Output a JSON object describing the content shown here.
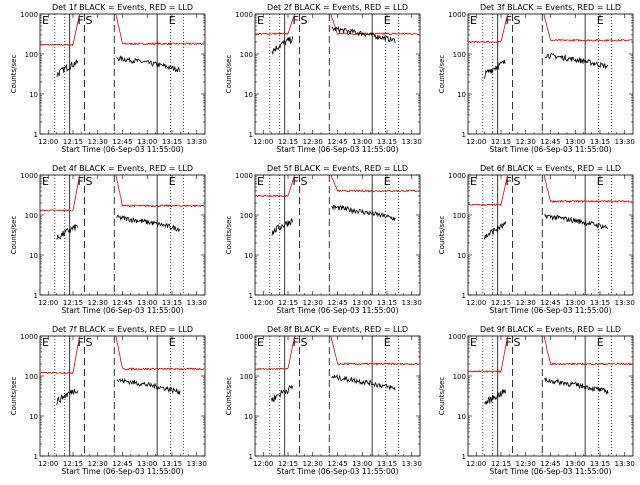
{
  "chart_data": {
    "type": "line",
    "yscale": "log",
    "ylim": [
      1,
      1000
    ],
    "xlim": [
      "11:55",
      "13:35"
    ],
    "x_tick_labels": [
      "12:00",
      "12:15",
      "12:30",
      "12:45",
      "13:00",
      "13:15",
      "13:30"
    ],
    "y_tick_labels": [
      "1",
      "10",
      "100",
      "1000"
    ],
    "ylabel": "Counts/sec",
    "xlabel": "Start Time (06-Sep-03 11:55:00)",
    "grid": false,
    "dotted_markers": [
      "12:04",
      "12:10",
      "13:14",
      "13:22"
    ],
    "dashed_markers": [
      "12:22",
      "12:40"
    ],
    "solid_markers": [
      "12:13",
      "13:06"
    ],
    "event_labels": {
      "E": "E",
      "F": "F",
      "S": "S"
    },
    "colors": {
      "events": "#000000",
      "lld": "#dd0000"
    },
    "series_names": [
      "BLACK = Events",
      "RED = LLD"
    ],
    "panels": [
      {
        "title": "Det 1f BLACK = Events, RED = LLD",
        "red": {
          "pre": 170,
          "post": 180,
          "peak": 1000
        },
        "black": {
          "pre": 60,
          "post": 50
        }
      },
      {
        "title": "Det 2f BLACK = Events, RED = LLD",
        "red": {
          "pre": 320,
          "post": 320,
          "peak": 1000
        },
        "black": {
          "pre": 230,
          "post": 270
        }
      },
      {
        "title": "Det 3f BLACK = Events, RED = LLD",
        "red": {
          "pre": 200,
          "post": 220,
          "peak": 1000
        },
        "black": {
          "pre": 60,
          "post": 60
        }
      },
      {
        "title": "Det 4f BLACK = Events, RED = LLD",
        "red": {
          "pre": 130,
          "post": 170,
          "peak": 1000
        },
        "black": {
          "pre": 50,
          "post": 55
        }
      },
      {
        "title": "Det 5f BLACK = Events, RED = LLD",
        "red": {
          "pre": 300,
          "post": 400,
          "peak": 1000
        },
        "black": {
          "pre": 70,
          "post": 100
        }
      },
      {
        "title": "Det 6f BLACK = Events, RED = LLD",
        "red": {
          "pre": 180,
          "post": 220,
          "peak": 1000
        },
        "black": {
          "pre": 55,
          "post": 60
        }
      },
      {
        "title": "Det 7f BLACK = Events, RED = LLD",
        "red": {
          "pre": 120,
          "post": 150,
          "peak": 1000
        },
        "black": {
          "pre": 45,
          "post": 50
        }
      },
      {
        "title": "Det 8f BLACK = Events, RED = LLD",
        "red": {
          "pre": 150,
          "post": 200,
          "peak": 1000
        },
        "black": {
          "pre": 50,
          "post": 60
        }
      },
      {
        "title": "Det 9f BLACK = Events, RED = LLD",
        "red": {
          "pre": 130,
          "post": 200,
          "peak": 1000
        },
        "black": {
          "pre": 40,
          "post": 50
        }
      }
    ]
  }
}
